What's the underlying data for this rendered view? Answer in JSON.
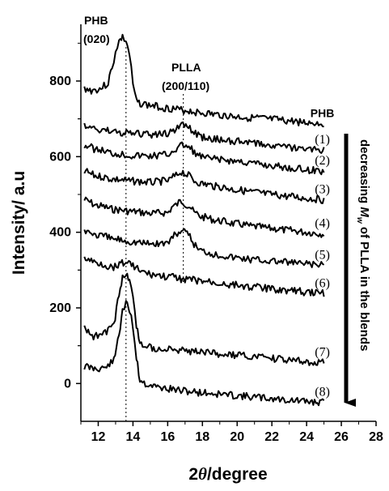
{
  "chart_data": {
    "type": "line",
    "xlabel_prefix": "2",
    "xlabel_symbol": "θ",
    "xlabel_suffix": "/degree",
    "ylabel": "Intensity/ a.u",
    "xlim": [
      11,
      28
    ],
    "ylim": [
      -100,
      950
    ],
    "xticks": [
      12,
      14,
      16,
      18,
      20,
      22,
      24,
      26,
      28
    ],
    "yticks": [
      0,
      200,
      400,
      600,
      800
    ],
    "series": [
      {
        "name": "PHB",
        "points": [
          [
            11.2,
            780
          ],
          [
            11.6,
            775
          ],
          [
            12.0,
            778
          ],
          [
            12.5,
            790
          ],
          [
            12.8,
            830
          ],
          [
            13.0,
            880
          ],
          [
            13.2,
            905
          ],
          [
            13.4,
            915
          ],
          [
            13.6,
            905
          ],
          [
            13.8,
            870
          ],
          [
            14.0,
            790
          ],
          [
            14.2,
            745
          ],
          [
            14.5,
            740
          ],
          [
            15,
            735
          ],
          [
            16,
            728
          ],
          [
            17,
            722
          ],
          [
            18,
            715
          ],
          [
            19,
            710
          ],
          [
            20,
            705
          ],
          [
            21,
            702
          ],
          [
            22,
            698
          ],
          [
            23,
            694
          ],
          [
            24,
            690
          ],
          [
            25,
            688
          ]
        ]
      },
      {
        "name": "(1)",
        "points": [
          [
            11.2,
            680
          ],
          [
            12,
            672
          ],
          [
            13,
            665
          ],
          [
            14,
            660
          ],
          [
            15,
            658
          ],
          [
            16,
            660
          ],
          [
            16.4,
            672
          ],
          [
            16.8,
            686
          ],
          [
            17.2,
            676
          ],
          [
            17.6,
            660
          ],
          [
            18,
            652
          ],
          [
            19,
            645
          ],
          [
            20,
            640
          ],
          [
            21,
            636
          ],
          [
            22,
            630
          ],
          [
            23,
            625
          ],
          [
            24,
            620
          ],
          [
            25,
            618
          ]
        ]
      },
      {
        "name": "(2)",
        "points": [
          [
            11.2,
            630
          ],
          [
            12,
            618
          ],
          [
            13,
            608
          ],
          [
            14,
            603
          ],
          [
            15,
            602
          ],
          [
            16,
            606
          ],
          [
            16.4,
            618
          ],
          [
            16.9,
            632
          ],
          [
            17.3,
            622
          ],
          [
            17.7,
            605
          ],
          [
            18,
            598
          ],
          [
            19,
            592
          ],
          [
            20,
            588
          ],
          [
            21,
            582
          ],
          [
            22,
            576
          ],
          [
            23,
            570
          ],
          [
            24,
            565
          ],
          [
            25,
            562
          ]
        ]
      },
      {
        "name": "(3)",
        "points": [
          [
            11.2,
            560
          ],
          [
            12,
            548
          ],
          [
            13,
            540
          ],
          [
            14,
            535
          ],
          [
            15,
            532
          ],
          [
            16,
            536
          ],
          [
            16.4,
            548
          ],
          [
            16.8,
            560
          ],
          [
            17.2,
            550
          ],
          [
            17.6,
            535
          ],
          [
            18,
            528
          ],
          [
            19,
            520
          ],
          [
            20,
            512
          ],
          [
            21,
            506
          ],
          [
            22,
            500
          ],
          [
            23,
            495
          ],
          [
            24,
            490
          ],
          [
            25,
            486
          ]
        ]
      },
      {
        "name": "(4)",
        "points": [
          [
            11.2,
            485
          ],
          [
            12,
            470
          ],
          [
            13,
            460
          ],
          [
            14,
            455
          ],
          [
            15,
            450
          ],
          [
            16,
            452
          ],
          [
            16.3,
            468
          ],
          [
            16.8,
            482
          ],
          [
            17.2,
            470
          ],
          [
            17.6,
            450
          ],
          [
            18,
            440
          ],
          [
            19,
            430
          ],
          [
            20,
            422
          ],
          [
            21,
            415
          ],
          [
            22,
            410
          ],
          [
            23,
            405
          ],
          [
            24,
            400
          ],
          [
            25,
            396
          ]
        ]
      },
      {
        "name": "(5)",
        "points": [
          [
            11.2,
            405
          ],
          [
            12,
            392
          ],
          [
            13,
            382
          ],
          [
            14,
            375
          ],
          [
            15,
            370
          ],
          [
            16,
            372
          ],
          [
            16.3,
            390
          ],
          [
            16.8,
            405
          ],
          [
            17.2,
            392
          ],
          [
            17.6,
            365
          ],
          [
            18,
            350
          ],
          [
            19,
            340
          ],
          [
            20,
            333
          ],
          [
            21,
            328
          ],
          [
            22,
            324
          ],
          [
            23,
            320
          ],
          [
            24,
            316
          ],
          [
            25,
            312
          ]
        ]
      },
      {
        "name": "(6)",
        "points": [
          [
            11.2,
            330
          ],
          [
            12,
            318
          ],
          [
            12.8,
            308
          ],
          [
            13.3,
            318
          ],
          [
            13.6,
            322
          ],
          [
            14.0,
            312
          ],
          [
            14.5,
            295
          ],
          [
            15,
            288
          ],
          [
            16,
            282
          ],
          [
            17,
            276
          ],
          [
            18,
            270
          ],
          [
            19,
            265
          ],
          [
            20,
            260
          ],
          [
            21,
            255
          ],
          [
            22,
            250
          ],
          [
            23,
            246
          ],
          [
            24,
            242
          ],
          [
            25,
            238
          ]
        ]
      },
      {
        "name": "(7)",
        "points": [
          [
            11.2,
            145
          ],
          [
            11.8,
            125
          ],
          [
            12.4,
            132
          ],
          [
            12.9,
            160
          ],
          [
            13.2,
            230
          ],
          [
            13.4,
            280
          ],
          [
            13.6,
            292
          ],
          [
            13.8,
            275
          ],
          [
            14.0,
            230
          ],
          [
            14.2,
            150
          ],
          [
            14.4,
            110
          ],
          [
            14.8,
            98
          ],
          [
            15.5,
            92
          ],
          [
            16,
            90
          ],
          [
            17,
            86
          ],
          [
            18,
            82
          ],
          [
            19,
            78
          ],
          [
            20,
            74
          ],
          [
            21,
            70
          ],
          [
            22,
            66
          ],
          [
            23,
            62
          ],
          [
            24,
            58
          ],
          [
            25,
            55
          ]
        ]
      },
      {
        "name": "(8)",
        "points": [
          [
            11.2,
            45
          ],
          [
            11.8,
            40
          ],
          [
            12.4,
            42
          ],
          [
            12.9,
            60
          ],
          [
            13.2,
            130
          ],
          [
            13.4,
            195
          ],
          [
            13.6,
            210
          ],
          [
            13.8,
            195
          ],
          [
            14.0,
            150
          ],
          [
            14.2,
            70
          ],
          [
            14.4,
            10
          ],
          [
            14.8,
            -2
          ],
          [
            15.5,
            -10
          ],
          [
            16,
            -14
          ],
          [
            17,
            -20
          ],
          [
            18,
            -24
          ],
          [
            19,
            -28
          ],
          [
            20,
            -32
          ],
          [
            21,
            -36
          ],
          [
            22,
            -40
          ],
          [
            23,
            -44
          ],
          [
            24,
            -48
          ],
          [
            25,
            -50
          ]
        ]
      }
    ],
    "annotations": {
      "phb_peak": {
        "line1": "PHB",
        "line2": "(020)",
        "x": 13.6
      },
      "plla_peak": {
        "line1": "PLLA",
        "line2": "(200/110)",
        "x": 16.9
      }
    },
    "arrow_text": {
      "prefix": "decreasing ",
      "symbol": "M",
      "subscript": "w",
      "suffix": " of PLLA in the blends"
    }
  }
}
